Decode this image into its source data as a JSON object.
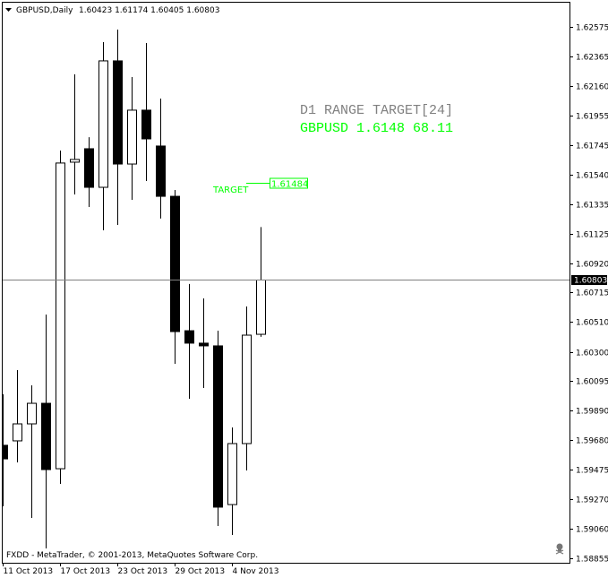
{
  "header": {
    "menu_icon": "triangle-down-icon",
    "symbol_timeframe": "GBPUSD,Daily",
    "ohlc": "1.60423 1.61174 1.60405 1.60803"
  },
  "indicator": {
    "title": "D1 RANGE TARGET[24]",
    "title_color": "#808080",
    "line": "GBPUSD 1.6148 68.11",
    "line_color": "#00ff00",
    "target_label": "TARGET",
    "target_price": 1.61484,
    "target_price_text": "1.61484"
  },
  "footer": {
    "copyright": "FXDD - MetaTrader, © 2001-2013, MetaQuotes Software Corp.",
    "status_icon": "skull-icon"
  },
  "current_price": {
    "value": 1.60803,
    "text": "1.60803"
  },
  "chart_data": {
    "type": "candlestick",
    "title": "GBPUSD,Daily",
    "ylim": [
      1.58855,
      1.62575
    ],
    "grid": false,
    "y_ticks": [
      "1.62575",
      "1.62365",
      "1.62160",
      "1.61955",
      "1.61745",
      "1.61540",
      "1.61335",
      "1.61125",
      "1.60920",
      "1.60715",
      "1.60510",
      "1.60300",
      "1.60095",
      "1.59890",
      "1.59680",
      "1.59475",
      "1.59270",
      "1.59060",
      "1.58855"
    ],
    "x_ticks": [
      {
        "date": "2013-10-11",
        "label": "11 Oct 2013"
      },
      {
        "date": "2013-10-17",
        "label": "17 Oct 2013"
      },
      {
        "date": "2013-10-23",
        "label": "23 Oct 2013"
      },
      {
        "date": "2013-10-29",
        "label": "29 Oct 2013"
      },
      {
        "date": "2013-11-04",
        "label": "4 Nov 2013"
      }
    ],
    "candles": [
      {
        "date": "2013-10-11",
        "open": 1.59646,
        "high": 1.60003,
        "low": 1.59219,
        "close": 1.59551
      },
      {
        "date": "2013-10-14",
        "open": 1.59677,
        "high": 1.60172,
        "low": 1.59526,
        "close": 1.59796
      },
      {
        "date": "2013-10-15",
        "open": 1.59796,
        "high": 1.60066,
        "low": 1.59137,
        "close": 1.5994
      },
      {
        "date": "2013-10-16",
        "open": 1.5994,
        "high": 1.60561,
        "low": 1.58924,
        "close": 1.59476
      },
      {
        "date": "2013-10-17",
        "open": 1.59482,
        "high": 1.61709,
        "low": 1.59376,
        "close": 1.61622
      },
      {
        "date": "2013-10-18",
        "open": 1.61628,
        "high": 1.62243,
        "low": 1.61402,
        "close": 1.61647
      },
      {
        "date": "2013-10-21",
        "open": 1.61722,
        "high": 1.61803,
        "low": 1.61314,
        "close": 1.61452
      },
      {
        "date": "2013-10-22",
        "open": 1.61452,
        "high": 1.62468,
        "low": 1.61151,
        "close": 1.62337
      },
      {
        "date": "2013-10-23",
        "open": 1.62337,
        "high": 1.62556,
        "low": 1.61189,
        "close": 1.61615
      },
      {
        "date": "2013-10-24",
        "open": 1.61615,
        "high": 1.62224,
        "low": 1.61364,
        "close": 1.61992
      },
      {
        "date": "2013-10-25",
        "open": 1.61992,
        "high": 1.62462,
        "low": 1.61496,
        "close": 1.61791
      },
      {
        "date": "2013-10-28",
        "open": 1.61741,
        "high": 1.62073,
        "low": 1.61233,
        "close": 1.61389
      },
      {
        "date": "2013-10-29",
        "open": 1.61389,
        "high": 1.61433,
        "low": 1.60216,
        "close": 1.60442
      },
      {
        "date": "2013-10-30",
        "open": 1.60448,
        "high": 1.60775,
        "low": 1.59972,
        "close": 1.60361
      },
      {
        "date": "2013-10-31",
        "open": 1.60361,
        "high": 1.60674,
        "low": 1.60047,
        "close": 1.60342
      },
      {
        "date": "2013-11-01",
        "open": 1.60342,
        "high": 1.60448,
        "low": 1.59081,
        "close": 1.59213
      },
      {
        "date": "2013-11-04",
        "open": 1.59231,
        "high": 1.59771,
        "low": 1.59018,
        "close": 1.59658
      },
      {
        "date": "2013-11-05",
        "open": 1.59658,
        "high": 1.60618,
        "low": 1.5947,
        "close": 1.60417
      },
      {
        "date": "2013-11-06",
        "open": 1.60423,
        "high": 1.61174,
        "low": 1.60405,
        "close": 1.60803
      }
    ]
  }
}
